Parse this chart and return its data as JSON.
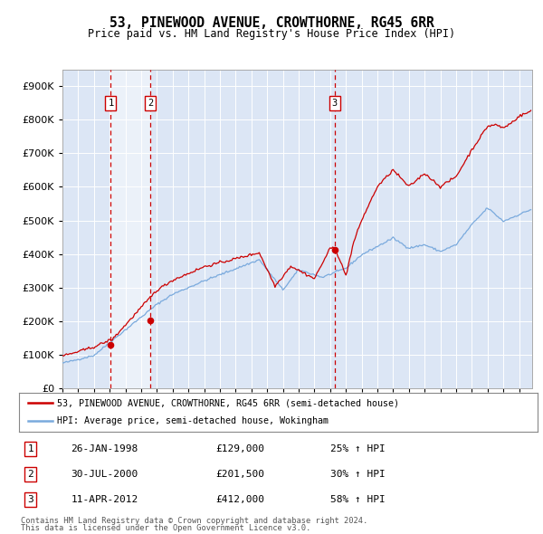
{
  "title": "53, PINEWOOD AVENUE, CROWTHORNE, RG45 6RR",
  "subtitle": "Price paid vs. HM Land Registry's House Price Index (HPI)",
  "legend_line1": "53, PINEWOOD AVENUE, CROWTHORNE, RG45 6RR (semi-detached house)",
  "legend_line2": "HPI: Average price, semi-detached house, Wokingham",
  "footer1": "Contains HM Land Registry data © Crown copyright and database right 2024.",
  "footer2": "This data is licensed under the Open Government Licence v3.0.",
  "transactions": [
    {
      "num": 1,
      "date": "26-JAN-1998",
      "price": 129000,
      "pct": "25%",
      "dir": "↑",
      "x_year": 1998.07
    },
    {
      "num": 2,
      "date": "30-JUL-2000",
      "price": 201500,
      "pct": "30%",
      "dir": "↑",
      "x_year": 2000.58
    },
    {
      "num": 3,
      "date": "11-APR-2012",
      "price": 412000,
      "pct": "58%",
      "dir": "↑",
      "x_year": 2012.28
    }
  ],
  "vline_color": "#cc0000",
  "shade_color": "#ccdcf0",
  "red_line_color": "#cc0000",
  "blue_line_color": "#7aaadd",
  "dot_color": "#cc0000",
  "plot_bg_color": "#dce6f5",
  "white_band_color": "#e8eef8",
  "ylim": [
    0,
    950000
  ],
  "yticks": [
    0,
    100000,
    200000,
    300000,
    400000,
    500000,
    600000,
    700000,
    800000,
    900000
  ],
  "xlim_start": 1995.0,
  "xlim_end": 2024.83
}
